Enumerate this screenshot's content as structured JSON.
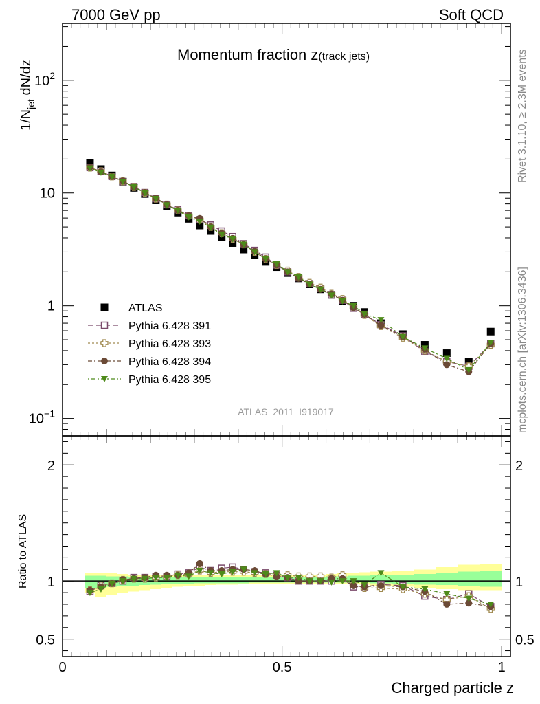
{
  "header": {
    "left": "7000 GeV pp",
    "right": "Soft QCD"
  },
  "side_labels": {
    "rivet": "Rivet 3.1.10, ≥ 2.3M events",
    "mcplots": "mcplots.cern.ch [arXiv:1306.3436]"
  },
  "chart_data": [
    {
      "type": "scatter",
      "title": "Momentum fraction z",
      "title_sub": "(track jets)",
      "ylabel": "1/N_jet dN/dz",
      "yscale": "log",
      "ylim": [
        0.07,
        320
      ],
      "xlim": [
        0,
        1.02
      ],
      "analysis_label": "ATLAS_2011_I919017",
      "y_ticks": [
        "10^-1",
        "1",
        "10",
        "10^2"
      ],
      "legend_position": "lower-left",
      "x": [
        0.0625,
        0.0875,
        0.1125,
        0.1375,
        0.1625,
        0.1875,
        0.2125,
        0.2375,
        0.2625,
        0.2875,
        0.3125,
        0.3375,
        0.3625,
        0.3875,
        0.4125,
        0.4375,
        0.4625,
        0.4875,
        0.5125,
        0.5375,
        0.5625,
        0.5875,
        0.6125,
        0.6375,
        0.6625,
        0.6875,
        0.725,
        0.775,
        0.825,
        0.875,
        0.925,
        0.975
      ],
      "series": [
        {
          "name": "ATLAS",
          "color": "#000000",
          "marker": "square",
          "values": [
            18.5,
            16.3,
            14.3,
            12.6,
            11.1,
            9.8,
            8.6,
            7.6,
            6.7,
            5.9,
            5.15,
            4.6,
            4.05,
            3.6,
            3.15,
            2.8,
            2.45,
            2.2,
            1.95,
            1.75,
            1.55,
            1.4,
            1.25,
            1.1,
            1.0,
            0.88,
            0.7,
            0.56,
            0.45,
            0.38,
            0.32,
            0.59
          ]
        },
        {
          "name": "Pythia 6.428 391",
          "color": "#7a4a6a",
          "marker": "open-square",
          "values": [
            16.8,
            15.6,
            14.0,
            12.6,
            11.4,
            10.1,
            8.9,
            7.9,
            7.1,
            6.3,
            5.8,
            5.2,
            4.6,
            4.1,
            3.55,
            3.1,
            2.7,
            2.3,
            2.0,
            1.77,
            1.57,
            1.42,
            1.25,
            1.12,
            0.95,
            0.84,
            0.68,
            0.54,
            0.39,
            0.32,
            0.29,
            0.46
          ]
        },
        {
          "name": "Pythia 6.428 393",
          "color": "#a08a50",
          "marker": "open-cross",
          "values": [
            16.8,
            15.6,
            14.0,
            12.7,
            11.3,
            10.0,
            8.9,
            7.9,
            7.0,
            6.3,
            5.8,
            5.0,
            4.4,
            3.9,
            3.5,
            3.0,
            2.6,
            2.3,
            2.05,
            1.8,
            1.6,
            1.45,
            1.28,
            1.15,
            0.97,
            0.83,
            0.66,
            0.52,
            0.4,
            0.32,
            0.29,
            0.45
          ]
        },
        {
          "name": "Pythia 6.428 394",
          "color": "#6b4a36",
          "marker": "circle",
          "values": [
            17.0,
            15.4,
            14.0,
            12.8,
            11.3,
            10.1,
            9.0,
            7.9,
            7.0,
            6.3,
            5.95,
            5.0,
            4.4,
            3.95,
            3.5,
            3.05,
            2.6,
            2.3,
            2.0,
            1.75,
            1.56,
            1.4,
            1.27,
            1.12,
            0.96,
            0.84,
            0.67,
            0.53,
            0.41,
            0.3,
            0.26,
            0.46
          ]
        },
        {
          "name": "Pythia 6.428 395",
          "color": "#4e8a1a",
          "marker": "triangle-down",
          "values": [
            16.6,
            15.2,
            14.0,
            12.6,
            11.3,
            10.0,
            8.9,
            7.8,
            7.0,
            6.1,
            5.6,
            4.95,
            4.3,
            3.9,
            3.5,
            3.0,
            2.6,
            2.35,
            2.0,
            1.8,
            1.55,
            1.4,
            1.24,
            1.1,
            1.0,
            0.85,
            0.75,
            0.53,
            0.42,
            0.34,
            0.27,
            0.47
          ]
        }
      ]
    },
    {
      "type": "scatter",
      "ylabel": "Ratio to ATLAS",
      "xlabel": "Charged particle z",
      "ylim": [
        0.35,
        2.25
      ],
      "xlim": [
        0,
        1.02
      ],
      "x_ticks": [
        "0",
        "0.5",
        "1"
      ],
      "y_ticks": [
        "0.5",
        "1",
        "2"
      ],
      "x": [
        0.0625,
        0.0875,
        0.1125,
        0.1375,
        0.1625,
        0.1875,
        0.2125,
        0.2375,
        0.2625,
        0.2875,
        0.3125,
        0.3375,
        0.3625,
        0.3875,
        0.4125,
        0.4375,
        0.4625,
        0.4875,
        0.5125,
        0.5375,
        0.5625,
        0.5875,
        0.6125,
        0.6375,
        0.6625,
        0.6875,
        0.725,
        0.775,
        0.825,
        0.875,
        0.925,
        0.975
      ],
      "bands": {
        "band_colors": {
          "outer": "#ffff99",
          "inner": "#99ff99"
        },
        "edges": [
          0.05,
          0.075,
          0.1,
          0.125,
          0.15,
          0.175,
          0.2,
          0.225,
          0.25,
          0.275,
          0.3,
          0.325,
          0.35,
          0.375,
          0.4,
          0.425,
          0.45,
          0.475,
          0.5,
          0.525,
          0.55,
          0.575,
          0.6,
          0.625,
          0.65,
          0.675,
          0.7,
          0.75,
          0.8,
          0.85,
          0.9,
          0.95,
          1.0
        ],
        "outer_lo": [
          0.9,
          0.86,
          0.88,
          0.9,
          0.91,
          0.92,
          0.93,
          0.94,
          0.95,
          0.955,
          0.96,
          0.965,
          0.97,
          0.97,
          0.975,
          0.975,
          0.975,
          0.975,
          0.975,
          0.975,
          0.975,
          0.975,
          0.975,
          0.975,
          0.975,
          0.97,
          0.96,
          0.95,
          0.94,
          0.93,
          0.92,
          0.92
        ],
        "outer_hi": [
          1.07,
          1.07,
          1.065,
          1.06,
          1.055,
          1.05,
          1.05,
          1.05,
          1.05,
          1.05,
          1.05,
          1.05,
          1.05,
          1.05,
          1.05,
          1.05,
          1.05,
          1.05,
          1.05,
          1.05,
          1.055,
          1.055,
          1.06,
          1.065,
          1.07,
          1.075,
          1.08,
          1.09,
          1.1,
          1.12,
          1.14,
          1.15
        ],
        "inner_lo": [
          0.94,
          0.94,
          0.95,
          0.955,
          0.96,
          0.965,
          0.97,
          0.975,
          0.975,
          0.975,
          0.98,
          0.98,
          0.98,
          0.98,
          0.98,
          0.985,
          0.985,
          0.985,
          0.985,
          0.985,
          0.985,
          0.985,
          0.985,
          0.985,
          0.985,
          0.985,
          0.98,
          0.975,
          0.97,
          0.965,
          0.955,
          0.95
        ],
        "inner_hi": [
          1.045,
          1.045,
          1.04,
          1.04,
          1.035,
          1.035,
          1.035,
          1.035,
          1.035,
          1.035,
          1.035,
          1.035,
          1.035,
          1.035,
          1.035,
          1.035,
          1.035,
          1.035,
          1.035,
          1.035,
          1.035,
          1.035,
          1.04,
          1.04,
          1.045,
          1.045,
          1.05,
          1.05,
          1.06,
          1.07,
          1.08,
          1.09
        ]
      },
      "series": [
        {
          "name": "Pythia 6.428 391",
          "color": "#7a4a6a",
          "marker": "open-square",
          "values": [
            0.91,
            0.96,
            0.98,
            1.0,
            1.03,
            1.03,
            1.04,
            1.04,
            1.06,
            1.07,
            1.12,
            1.09,
            1.11,
            1.12,
            1.1,
            1.08,
            1.07,
            1.05,
            1.03,
            1.0,
            1.0,
            1.0,
            1.0,
            1.02,
            0.95,
            0.95,
            0.97,
            0.96,
            0.87,
            0.84,
            0.89,
            0.78
          ]
        },
        {
          "name": "Pythia 6.428 393",
          "color": "#a08a50",
          "marker": "open-cross",
          "values": [
            0.92,
            0.96,
            0.98,
            1.01,
            1.02,
            1.02,
            1.03,
            1.04,
            1.05,
            1.06,
            1.09,
            1.07,
            1.08,
            1.08,
            1.08,
            1.07,
            1.06,
            1.05,
            1.05,
            1.04,
            1.04,
            1.04,
            1.03,
            1.05,
            0.97,
            0.94,
            0.94,
            0.93,
            0.89,
            0.84,
            0.87,
            0.76
          ]
        },
        {
          "name": "Pythia 6.428 394",
          "color": "#6b4a36",
          "marker": "circle",
          "values": [
            0.92,
            0.95,
            0.98,
            1.01,
            1.02,
            1.03,
            1.05,
            1.05,
            1.05,
            1.07,
            1.15,
            1.09,
            1.09,
            1.1,
            1.1,
            1.09,
            1.06,
            1.04,
            1.03,
            1.0,
            1.0,
            1.0,
            1.02,
            1.02,
            0.96,
            0.95,
            0.96,
            0.95,
            0.91,
            0.8,
            0.81,
            0.78
          ]
        },
        {
          "name": "Pythia 6.428 395",
          "color": "#4e8a1a",
          "marker": "triangle-down",
          "values": [
            0.9,
            0.93,
            0.98,
            1.0,
            1.02,
            1.02,
            1.03,
            1.03,
            1.05,
            1.04,
            1.09,
            1.07,
            1.06,
            1.08,
            1.1,
            1.07,
            1.06,
            1.07,
            1.03,
            1.03,
            1.0,
            1.0,
            0.99,
            1.0,
            1.0,
            0.97,
            1.07,
            0.95,
            0.93,
            0.89,
            0.85,
            0.8
          ]
        }
      ]
    }
  ]
}
